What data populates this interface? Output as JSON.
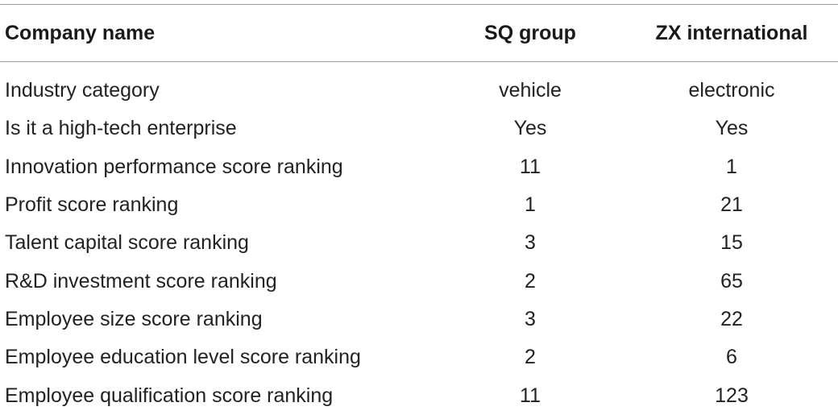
{
  "table": {
    "headers": [
      "Company name",
      "SQ group",
      "ZX international"
    ],
    "rows": [
      {
        "label": "Industry category",
        "sq": "vehicle",
        "zx": "electronic"
      },
      {
        "label": "Is it a high-tech enterprise",
        "sq": "Yes",
        "zx": "Yes"
      },
      {
        "label": "Innovation performance score ranking",
        "sq": "11",
        "zx": "1"
      },
      {
        "label": "Profit score ranking",
        "sq": "1",
        "zx": "21"
      },
      {
        "label": "Talent capital score ranking",
        "sq": "3",
        "zx": "15"
      },
      {
        "label": "R&D investment score ranking",
        "sq": "2",
        "zx": "65"
      },
      {
        "label": "Employee size score ranking",
        "sq": "3",
        "zx": "22"
      },
      {
        "label": "Employee education level score ranking",
        "sq": "2",
        "zx": "6"
      },
      {
        "label": "Employee qualification score ranking",
        "sq": "11",
        "zx": "123"
      }
    ]
  }
}
